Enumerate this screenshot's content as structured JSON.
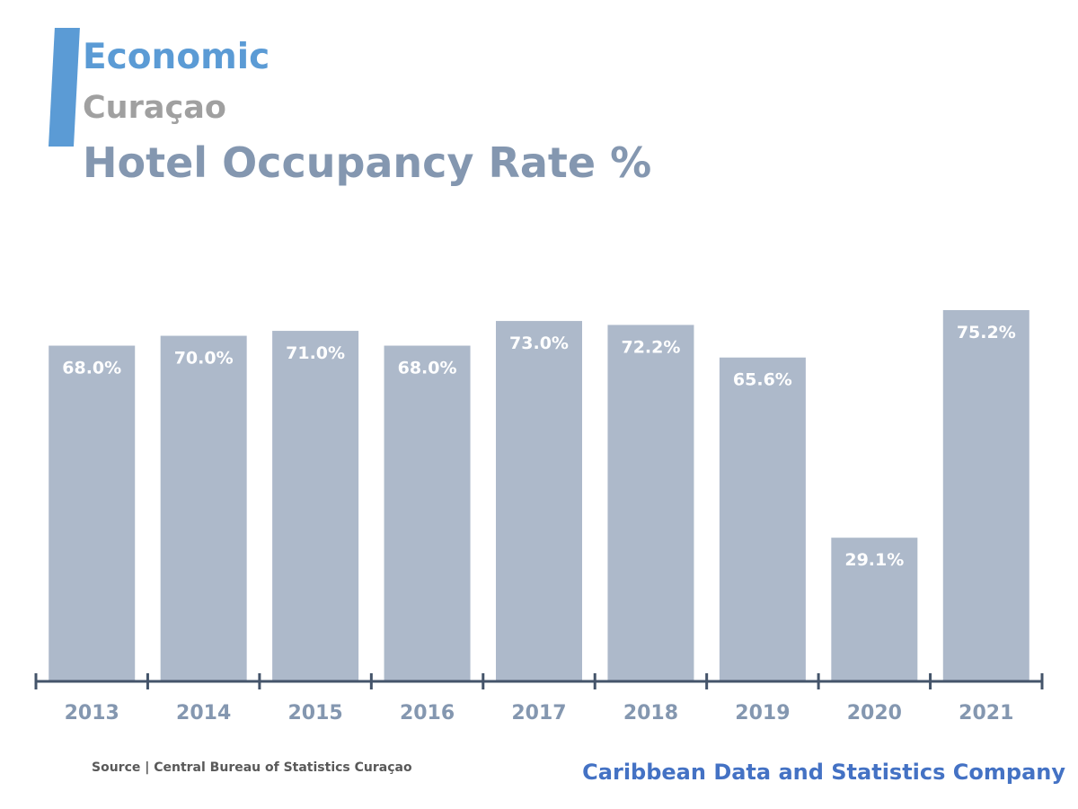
{
  "header": {
    "category": "Economic",
    "region": "Curaçao",
    "title": "Hotel Occupancy Rate %"
  },
  "colors": {
    "accent": "#5b9bd5",
    "category": "#5b9bd5",
    "region": "#a0a0a0",
    "title": "#8497b0",
    "bar": "#adb9ca",
    "axis": "#44546a",
    "tick_label": "#8497b0",
    "source": "#595959",
    "brand": "#4472c4"
  },
  "chart_data": {
    "type": "bar",
    "categories": [
      "2013",
      "2014",
      "2015",
      "2016",
      "2017",
      "2018",
      "2019",
      "2020",
      "2021"
    ],
    "values": [
      68.0,
      70.0,
      71.0,
      68.0,
      73.0,
      72.2,
      65.6,
      29.1,
      75.2
    ],
    "data_labels": [
      "68.0%",
      "70.0%",
      "71.0%",
      "68.0%",
      "73.0%",
      "72.2%",
      "65.6%",
      "29.1%",
      "75.2%"
    ],
    "ylim": [
      0,
      75.2
    ],
    "grid": false,
    "legend": "none"
  },
  "footer": {
    "source": "Source | Central Bureau of Statistics Curaçao",
    "brand": "Caribbean Data and Statistics Company"
  }
}
